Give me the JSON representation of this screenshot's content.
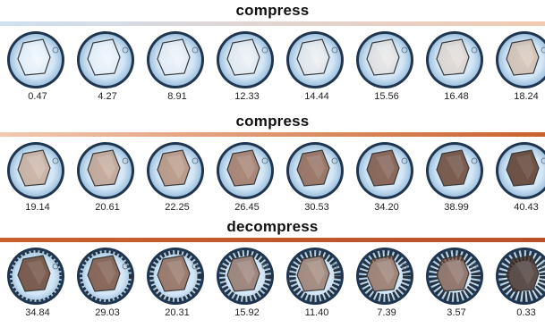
{
  "sections": [
    {
      "title": "compress",
      "bar_colors": [
        "#cfe0f2",
        "#f3c9b0"
      ],
      "samples": [
        {
          "label": "0.47",
          "tint": "#ffffff",
          "shade": 0.0,
          "edge": 0.0
        },
        {
          "label": "4.27",
          "tint": "#ffffff",
          "shade": 0.02,
          "edge": 0.0
        },
        {
          "label": "8.91",
          "tint": "#fbf4ef",
          "shade": 0.04,
          "edge": 0.0
        },
        {
          "label": "12.33",
          "tint": "#f7ece4",
          "shade": 0.06,
          "edge": 0.0
        },
        {
          "label": "14.44",
          "tint": "#f1e2d6",
          "shade": 0.09,
          "edge": 0.0
        },
        {
          "label": "15.56",
          "tint": "#ead3c2",
          "shade": 0.14,
          "edge": 0.0
        },
        {
          "label": "16.48",
          "tint": "#dcbba3",
          "shade": 0.22,
          "edge": 0.0
        },
        {
          "label": "18.24",
          "tint": "#c99a78",
          "shade": 0.32,
          "edge": 0.0
        }
      ]
    },
    {
      "title": "compress",
      "bar_colors": [
        "#f3c9b0",
        "#c9612d"
      ],
      "samples": [
        {
          "label": "19.14",
          "tint": "#b98463",
          "shade": 0.4,
          "edge": 0.0
        },
        {
          "label": "20.61",
          "tint": "#b07a58",
          "shade": 0.45,
          "edge": 0.0
        },
        {
          "label": "22.25",
          "tint": "#a46b49",
          "shade": 0.52,
          "edge": 0.0
        },
        {
          "label": "26.45",
          "tint": "#8f563a",
          "shade": 0.6,
          "edge": 0.0
        },
        {
          "label": "30.53",
          "tint": "#7f4a31",
          "shade": 0.66,
          "edge": 0.0
        },
        {
          "label": "34.20",
          "tint": "#6f3f2a",
          "shade": 0.72,
          "edge": 0.0
        },
        {
          "label": "38.99",
          "tint": "#613725",
          "shade": 0.78,
          "edge": 0.0
        },
        {
          "label": "40.43",
          "tint": "#55301f",
          "shade": 0.82,
          "edge": 0.0
        }
      ]
    },
    {
      "title": "decompress",
      "bar_colors": [
        "#c9612d",
        "#b9502a"
      ],
      "samples": [
        {
          "label": "34.84",
          "tint": "#5f3422",
          "shade": 0.75,
          "edge": 0.05
        },
        {
          "label": "29.03",
          "tint": "#6a3b26",
          "shade": 0.7,
          "edge": 0.1
        },
        {
          "label": "20.31",
          "tint": "#7c4a31",
          "shade": 0.62,
          "edge": 0.25
        },
        {
          "label": "15.92",
          "tint": "#7e5240",
          "shade": 0.58,
          "edge": 0.45
        },
        {
          "label": "11.40",
          "tint": "#84573f",
          "shade": 0.55,
          "edge": 0.55
        },
        {
          "label": "7.39",
          "tint": "#7f5038",
          "shade": 0.58,
          "edge": 0.7
        },
        {
          "label": "3.57",
          "tint": "#6f4430",
          "shade": 0.62,
          "edge": 0.85
        },
        {
          "label": "0.33",
          "tint": "#3e2a22",
          "shade": 0.8,
          "edge": 1.0
        }
      ]
    }
  ]
}
